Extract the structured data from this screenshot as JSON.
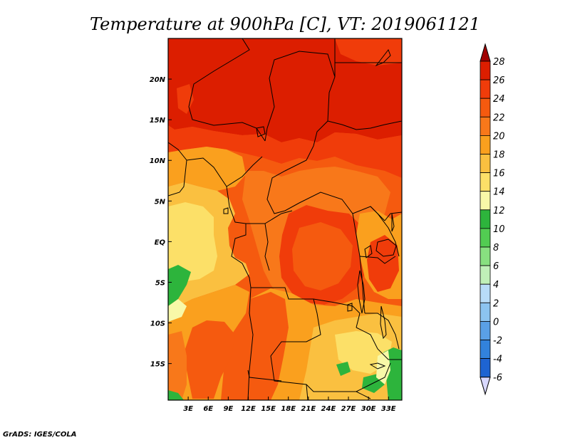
{
  "title": "Temperature at 900hPa [C], VT: 2019061121",
  "credit": "GrADS: IGES/COLA",
  "map": {
    "lon_labels": [
      "3E",
      "6E",
      "9E",
      "12E",
      "15E",
      "18E",
      "21E",
      "24E",
      "27E",
      "30E",
      "33E"
    ],
    "lat_labels": [
      "20N",
      "15N",
      "10N",
      "5N",
      "EQ",
      "5S",
      "10S",
      "15S"
    ],
    "lon_range": [
      0,
      35
    ],
    "lat_range": [
      -19.5,
      25
    ]
  },
  "colorbar": {
    "labels": [
      "28",
      "26",
      "24",
      "22",
      "20",
      "18",
      "16",
      "14",
      "12",
      "10",
      "8",
      "6",
      "4",
      "2",
      "0",
      "-2",
      "-4",
      "-6"
    ],
    "colors": [
      "#a00000",
      "#dc1e00",
      "#f03c0a",
      "#f55a0f",
      "#f8781a",
      "#faa01e",
      "#fac040",
      "#fce068",
      "#f8f8a8",
      "#2db43c",
      "#52cc52",
      "#88e080",
      "#c0f0b8",
      "#b8dcf8",
      "#8cc4f0",
      "#5aa0e6",
      "#3282dc",
      "#1e64d2",
      "#1446be",
      "#0a1e8c",
      "#c8c8ff"
    ],
    "over_color": "#a00000",
    "under_color": "#d8d8ff"
  },
  "field_colors": {
    "t27": "#dc1e00",
    "t25": "#f03c0a",
    "t23": "#f55a0f",
    "t22": "#f8781a",
    "t21": "#faa01e",
    "t19": "#fac040",
    "t17": "#fce068",
    "t16": "#f8f8a8",
    "t14": "#2db43c",
    "border": "#000000"
  }
}
